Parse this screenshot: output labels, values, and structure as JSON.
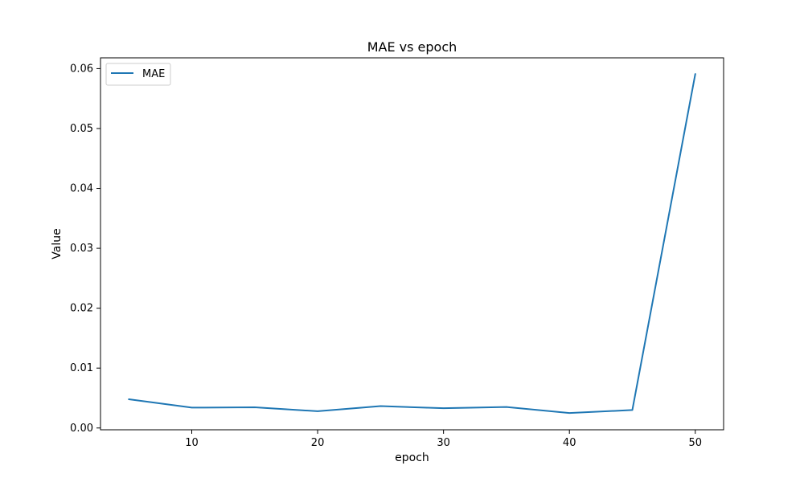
{
  "chart_data": {
    "type": "line",
    "title": "MAE vs epoch",
    "xlabel": "epoch",
    "ylabel": "Value",
    "xlim": [
      2.75,
      52.25
    ],
    "ylim": [
      -0.0003,
      0.0618
    ],
    "xticks": [
      10,
      20,
      30,
      40,
      50
    ],
    "yticks": [
      0.0,
      0.01,
      0.02,
      0.03,
      0.04,
      0.05,
      0.06
    ],
    "ytick_labels": [
      "0.00",
      "0.01",
      "0.02",
      "0.03",
      "0.04",
      "0.05",
      "0.06"
    ],
    "grid": false,
    "legend_position": "top-left",
    "series": [
      {
        "name": "MAE",
        "color": "#1f77b4",
        "x": [
          5,
          10,
          15,
          20,
          25,
          30,
          35,
          40,
          45,
          50
        ],
        "y": [
          0.0048,
          0.0034,
          0.00345,
          0.0028,
          0.00365,
          0.0033,
          0.0035,
          0.0025,
          0.003,
          0.0591
        ]
      }
    ]
  }
}
